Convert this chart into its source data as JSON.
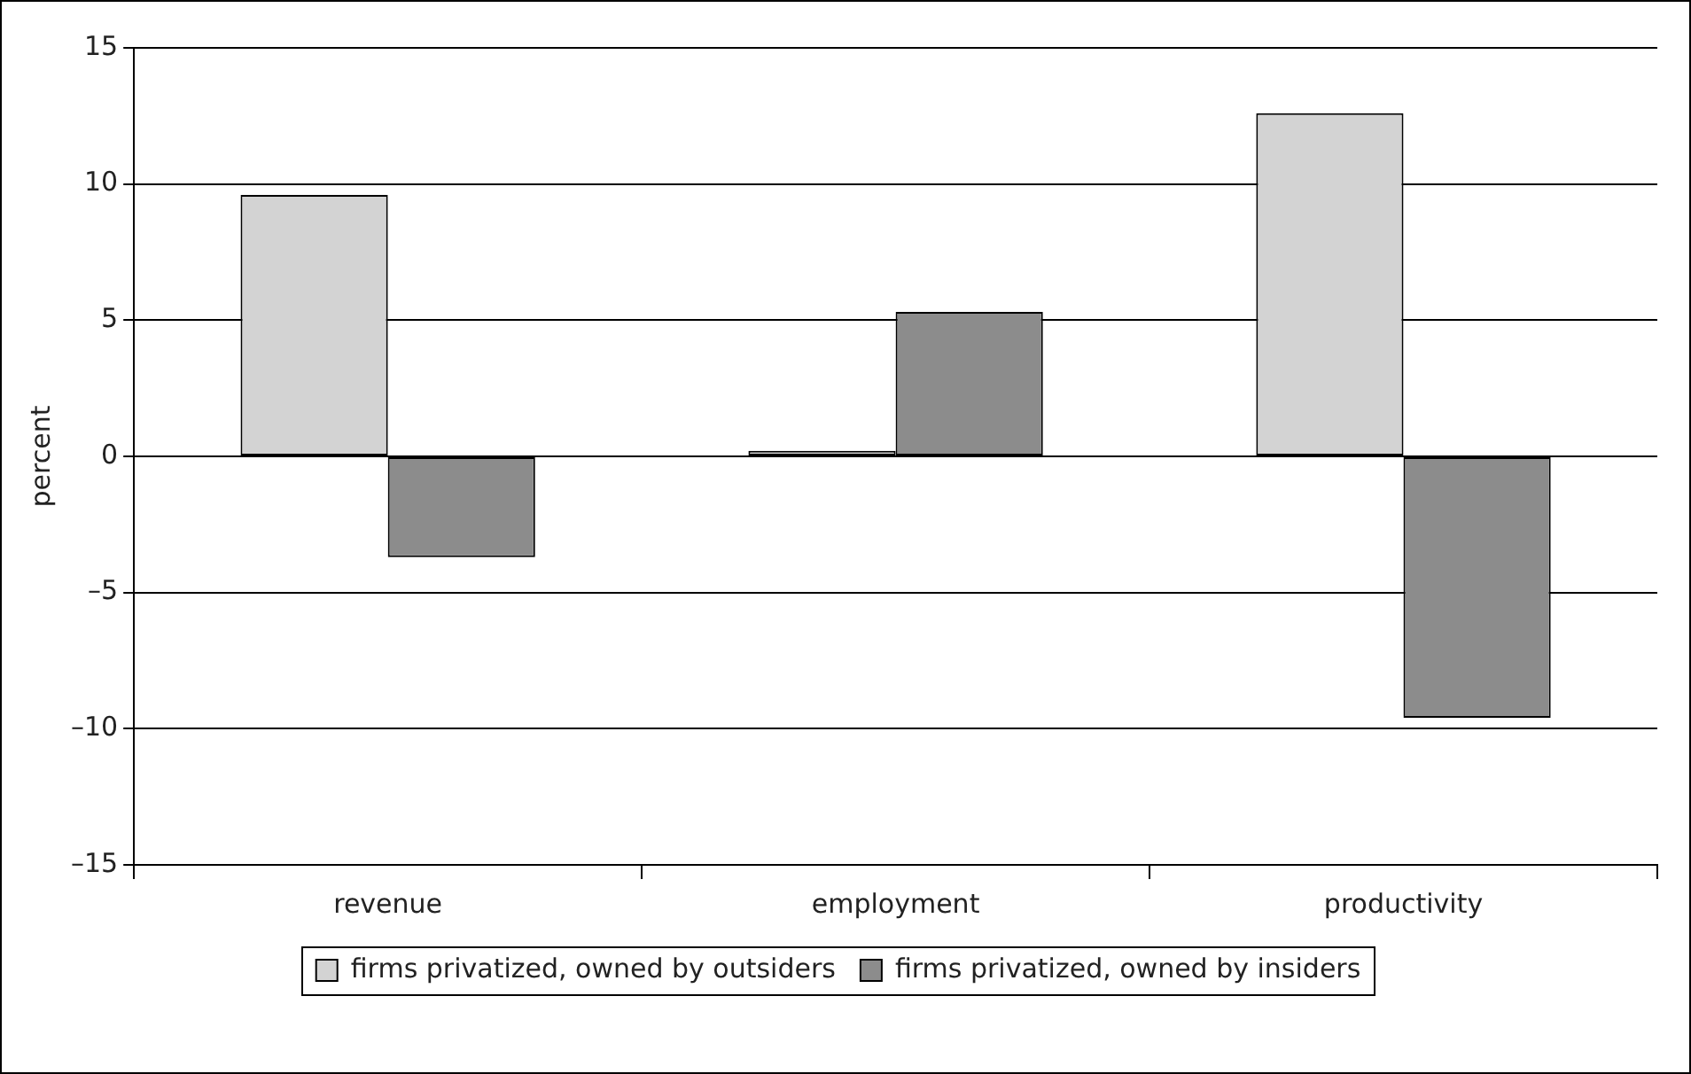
{
  "chart_data": {
    "type": "bar",
    "ylabel": "percent",
    "categories": [
      "revenue",
      "employment",
      "productivity"
    ],
    "series": [
      {
        "name": "firms privatized, owned by outsiders",
        "color": "#d3d3d3",
        "values": [
          9.6,
          0.2,
          12.6
        ]
      },
      {
        "name": "firms privatized, owned by insiders",
        "color": "#8c8c8c",
        "values": [
          -3.7,
          5.3,
          -9.6
        ]
      }
    ],
    "ylim": [
      -15,
      15
    ],
    "yticks": [
      {
        "value": -15,
        "label": "–15"
      },
      {
        "value": -10,
        "label": "–10"
      },
      {
        "value": -5,
        "label": "–5"
      },
      0,
      5,
      10,
      15
    ],
    "grid": "y",
    "legend": "bottom"
  }
}
